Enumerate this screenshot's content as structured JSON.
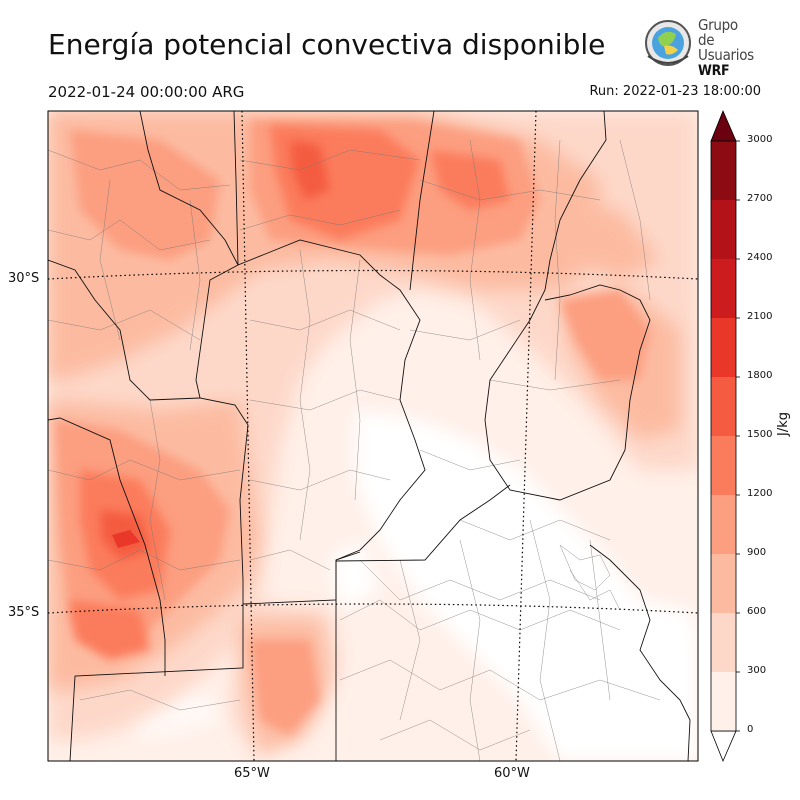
{
  "title": "Energía potencial convectiva disponible",
  "valid_time": "2022-01-24 00:00:00 ARG",
  "run_time": "Run: 2022-01-23 18:00:00",
  "logo": {
    "line1": "Grupo de",
    "line2": "Usuarios",
    "line3": "WRF"
  },
  "map": {
    "lat_labels": [
      "30°S",
      "35°S"
    ],
    "lon_labels": [
      "65°W",
      "60°W"
    ]
  },
  "colorbar": {
    "unit": "J/kg",
    "ticks": [
      "0",
      "300",
      "600",
      "900",
      "1200",
      "1500",
      "1800",
      "2100",
      "2400",
      "2700",
      "3000"
    ],
    "colors": [
      "#fff0e9",
      "#fdd8c9",
      "#fcbba1",
      "#fc9e80",
      "#fb7c5c",
      "#f45b41",
      "#e9372a",
      "#cd1c1e",
      "#b21218",
      "#8d0c13",
      "#6b0010"
    ]
  }
}
